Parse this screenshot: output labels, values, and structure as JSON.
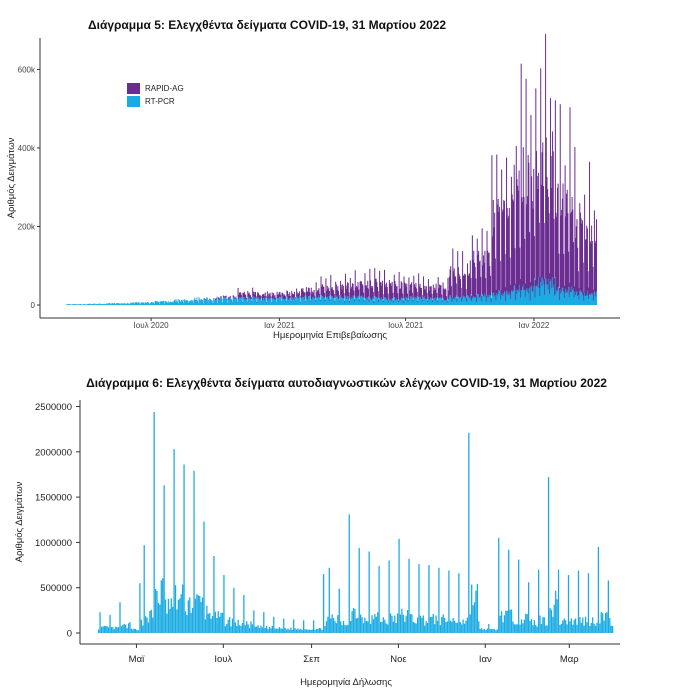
{
  "charts": [
    {
      "type": "bar",
      "title": "Διάγραμμα 5: Ελεγχθέντα δείγματα COVID-19, 31 Μαρτίου 2022",
      "xlabel": "Ημερομηνία Επιβεβαίωσης",
      "ylabel": "Αριθμός Δειγμάτων",
      "ylim": [
        0,
        680000
      ],
      "y_ticks": [
        {
          "value": 0,
          "label": "0"
        },
        {
          "value": 200000,
          "label": "200k"
        },
        {
          "value": 400000,
          "label": "400k"
        },
        {
          "value": 600000,
          "label": "600k"
        }
      ],
      "x_ticks": [
        {
          "date": "2020-07-01",
          "label": "Ιουλ 2020"
        },
        {
          "date": "2021-01-01",
          "label": "Ιαν 2021"
        },
        {
          "date": "2021-07-01",
          "label": "Ιουλ 2021"
        },
        {
          "date": "2022-01-01",
          "label": "Ιαν 2022"
        }
      ],
      "legend_position": "top-left",
      "grid": false,
      "series": [
        {
          "name": "RAPID-AG",
          "color": "#6a2c91"
        },
        {
          "name": "RT-PCR",
          "color": "#1aabe3"
        }
      ],
      "x_range": [
        "2020-03-01",
        "2022-03-31"
      ],
      "data": [
        {
          "period": "2020-03",
          "rapid_ag": 0,
          "rt_pcr": 2000
        },
        {
          "period": "2020-04",
          "rapid_ag": 0,
          "rt_pcr": 3000
        },
        {
          "period": "2020-05",
          "rapid_ag": 0,
          "rt_pcr": 4000
        },
        {
          "period": "2020-06",
          "rapid_ag": 0,
          "rt_pcr": 6000
        },
        {
          "period": "2020-07",
          "rapid_ag": 0,
          "rt_pcr": 8000
        },
        {
          "period": "2020-08",
          "rapid_ag": 0,
          "rt_pcr": 12000
        },
        {
          "period": "2020-09",
          "rapid_ag": 1000,
          "rt_pcr": 14000
        },
        {
          "period": "2020-10",
          "rapid_ag": 3000,
          "rt_pcr": 16000
        },
        {
          "period": "2020-11",
          "rapid_ag": 12000,
          "rt_pcr": 18000
        },
        {
          "period": "2020-12",
          "rapid_ag": 10000,
          "rt_pcr": 16000
        },
        {
          "period": "2021-01",
          "rapid_ag": 12000,
          "rt_pcr": 18000
        },
        {
          "period": "2021-02",
          "rapid_ag": 18000,
          "rt_pcr": 20000
        },
        {
          "period": "2021-03",
          "rapid_ag": 25000,
          "rt_pcr": 20000
        },
        {
          "period": "2021-04",
          "rapid_ag": 32000,
          "rt_pcr": 20000
        },
        {
          "period": "2021-05",
          "rapid_ag": 38000,
          "rt_pcr": 18000
        },
        {
          "period": "2021-06",
          "rapid_ag": 35000,
          "rt_pcr": 16000
        },
        {
          "period": "2021-07",
          "rapid_ag": 30000,
          "rt_pcr": 18000
        },
        {
          "period": "2021-08",
          "rapid_ag": 28000,
          "rt_pcr": 16000
        },
        {
          "period": "2021-09",
          "rapid_ag": 60000,
          "rt_pcr": 20000
        },
        {
          "period": "2021-10",
          "rapid_ag": 95000,
          "rt_pcr": 22000
        },
        {
          "period": "2021-11",
          "rapid_ag": 200000,
          "rt_pcr": 30000
        },
        {
          "period": "2021-12",
          "rapid_ag": 280000,
          "rt_pcr": 40000
        },
        {
          "period": "2022-01",
          "rapid_ag": 300000,
          "rt_pcr": 55000
        },
        {
          "period": "2022-02",
          "rapid_ag": 240000,
          "rt_pcr": 40000
        },
        {
          "period": "2022-03",
          "rapid_ag": 160000,
          "rt_pcr": 30000
        }
      ]
    },
    {
      "type": "bar",
      "title": "Διάγραμμα 6: Ελεγχθέντα δείγματα αυτοδιαγνωστικών ελέγχων COVID-19, 31 Μαρτίου 2022",
      "xlabel": "Ημερομηνία Δήλωσης",
      "ylabel": "Αριθμός Δειγμάτων",
      "ylim": [
        0,
        2550000
      ],
      "y_ticks": [
        {
          "value": 0,
          "label": "0"
        },
        {
          "value": 500000,
          "label": "500000"
        },
        {
          "value": 1000000,
          "label": "1000000"
        },
        {
          "value": 1500000,
          "label": "1500000"
        },
        {
          "value": 2000000,
          "label": "2000000"
        },
        {
          "value": 2500000,
          "label": "2500000"
        }
      ],
      "x_ticks": [
        {
          "date": "2021-05-01",
          "label": "Μαϊ"
        },
        {
          "date": "2021-07-01",
          "label": "Ιουλ"
        },
        {
          "date": "2021-09-01",
          "label": "Σεπ"
        },
        {
          "date": "2021-11-01",
          "label": "Νοε"
        },
        {
          "date": "2022-01-01",
          "label": "Ιαν"
        },
        {
          "date": "2022-03-01",
          "label": "Μαρ"
        }
      ],
      "grid": false,
      "series": [
        {
          "name": "",
          "color": "#1aabe3"
        }
      ],
      "x_range": [
        "2021-04-04",
        "2022-03-31"
      ],
      "weekly_peaks": [
        {
          "date": "2021-04-05",
          "value": 230000
        },
        {
          "date": "2021-04-12",
          "value": 200000
        },
        {
          "date": "2021-04-19",
          "value": 340000
        },
        {
          "date": "2021-04-26",
          "value": 120000
        },
        {
          "date": "2021-05-03",
          "value": 550000
        },
        {
          "date": "2021-05-06",
          "value": 970000
        },
        {
          "date": "2021-05-13",
          "value": 2440000
        },
        {
          "date": "2021-05-20",
          "value": 1630000
        },
        {
          "date": "2021-05-27",
          "value": 2030000
        },
        {
          "date": "2021-06-03",
          "value": 1860000
        },
        {
          "date": "2021-06-10",
          "value": 1790000
        },
        {
          "date": "2021-06-17",
          "value": 1230000
        },
        {
          "date": "2021-06-24",
          "value": 850000
        },
        {
          "date": "2021-07-01",
          "value": 640000
        },
        {
          "date": "2021-07-08",
          "value": 500000
        },
        {
          "date": "2021-07-15",
          "value": 420000
        },
        {
          "date": "2021-07-22",
          "value": 250000
        },
        {
          "date": "2021-07-29",
          "value": 230000
        },
        {
          "date": "2021-08-05",
          "value": 180000
        },
        {
          "date": "2021-08-12",
          "value": 160000
        },
        {
          "date": "2021-08-19",
          "value": 150000
        },
        {
          "date": "2021-08-26",
          "value": 140000
        },
        {
          "date": "2021-09-02",
          "value": 140000
        },
        {
          "date": "2021-09-09",
          "value": 650000
        },
        {
          "date": "2021-09-13",
          "value": 720000
        },
        {
          "date": "2021-09-20",
          "value": 490000
        },
        {
          "date": "2021-09-27",
          "value": 1310000
        },
        {
          "date": "2021-10-04",
          "value": 940000
        },
        {
          "date": "2021-10-11",
          "value": 900000
        },
        {
          "date": "2021-10-18",
          "value": 740000
        },
        {
          "date": "2021-10-25",
          "value": 800000
        },
        {
          "date": "2021-11-01",
          "value": 1040000
        },
        {
          "date": "2021-11-08",
          "value": 820000
        },
        {
          "date": "2021-11-15",
          "value": 760000
        },
        {
          "date": "2021-11-22",
          "value": 750000
        },
        {
          "date": "2021-11-29",
          "value": 720000
        },
        {
          "date": "2021-12-06",
          "value": 690000
        },
        {
          "date": "2021-12-13",
          "value": 660000
        },
        {
          "date": "2021-12-20",
          "value": 2210000
        },
        {
          "date": "2021-12-27",
          "value": 130000
        },
        {
          "date": "2022-01-03",
          "value": 100000
        },
        {
          "date": "2022-01-10",
          "value": 1050000
        },
        {
          "date": "2022-01-17",
          "value": 920000
        },
        {
          "date": "2022-01-24",
          "value": 810000
        },
        {
          "date": "2022-01-31",
          "value": 560000
        },
        {
          "date": "2022-02-07",
          "value": 700000
        },
        {
          "date": "2022-02-14",
          "value": 1720000
        },
        {
          "date": "2022-02-21",
          "value": 700000
        },
        {
          "date": "2022-02-28",
          "value": 640000
        },
        {
          "date": "2022-03-07",
          "value": 690000
        },
        {
          "date": "2022-03-14",
          "value": 660000
        },
        {
          "date": "2022-03-21",
          "value": 950000
        },
        {
          "date": "2022-03-28",
          "value": 580000
        }
      ]
    }
  ]
}
